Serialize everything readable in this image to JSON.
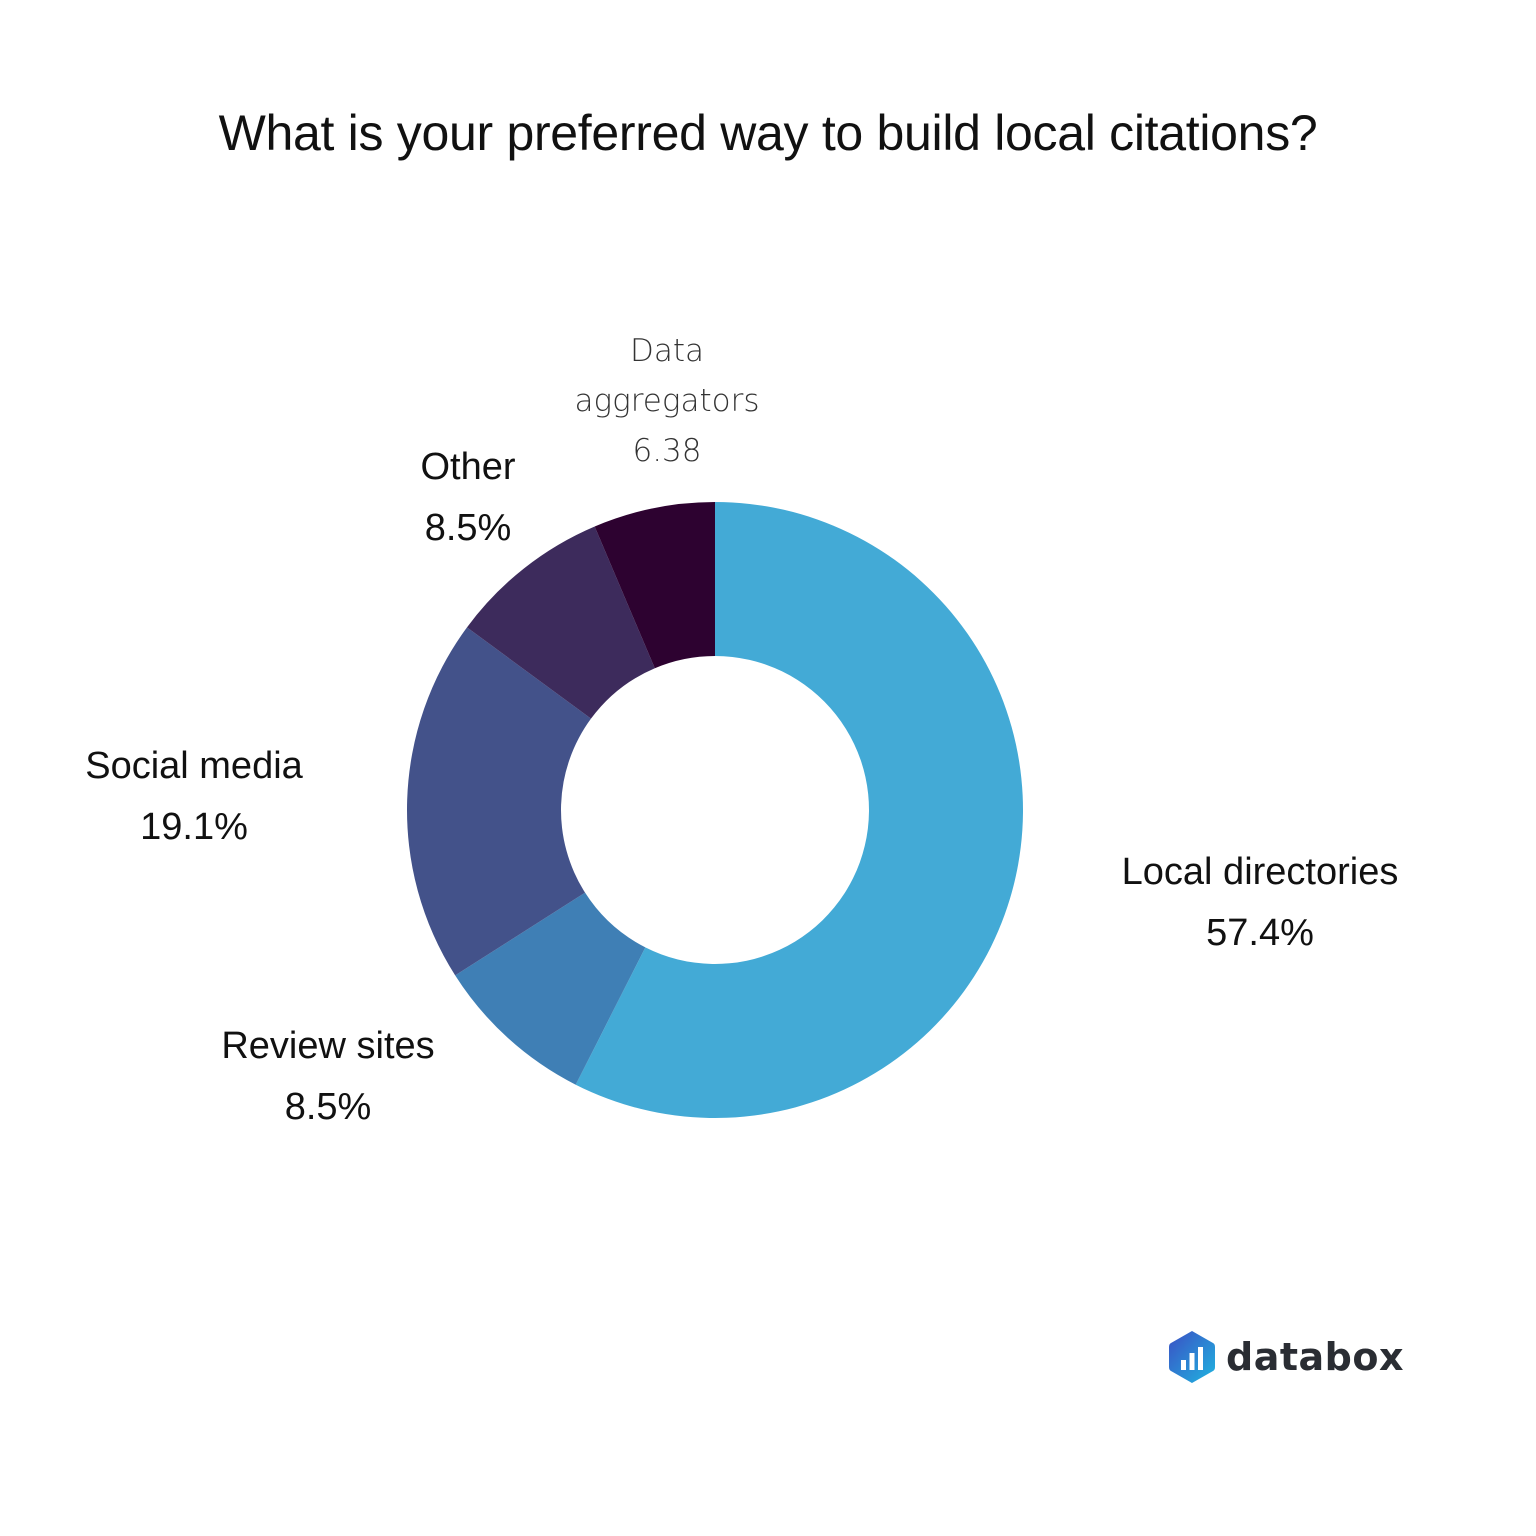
{
  "title": "What is your preferred way to build local citations?",
  "chart_data": {
    "type": "pie",
    "subtype": "donut",
    "title": "What is your preferred way to build local citations?",
    "categories": [
      "Local directories",
      "Review sites",
      "Social media",
      "Other",
      "Data aggregators"
    ],
    "values": [
      57.4,
      8.5,
      19.1,
      8.5,
      6.38
    ],
    "value_labels": [
      "57.4%",
      "8.5%",
      "19.1%",
      "8.5%",
      "6.38"
    ],
    "colors": [
      "#43AAD6",
      "#3F7FB5",
      "#43528A",
      "#3D2B5C",
      "#2D0230"
    ],
    "start_angle": "12 o'clock",
    "direction": "clockwise",
    "legend": "none (direct labels)"
  },
  "labels": {
    "local_directories": {
      "name": "Local directories",
      "value": "57.4%"
    },
    "review_sites": {
      "name": "Review sites",
      "value": "8.5%"
    },
    "social_media": {
      "name": "Social media",
      "value": "19.1%"
    },
    "other": {
      "name": "Other",
      "value": "8.5%"
    },
    "data_aggregators": {
      "name_line1": "Data",
      "name_line2": "aggregators",
      "value": "6.38"
    }
  },
  "branding": {
    "logo_text": "databox"
  }
}
